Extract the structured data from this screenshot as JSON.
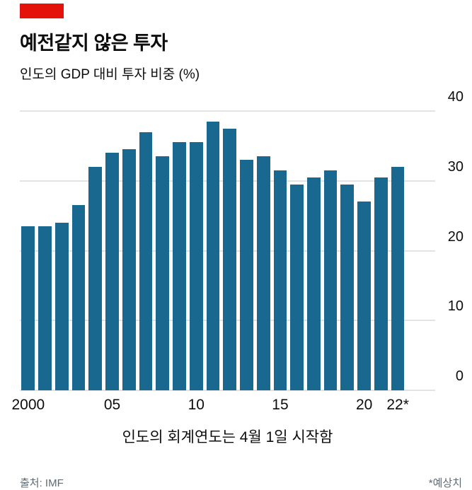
{
  "header": {
    "title": "예전같지 않은 투자",
    "subtitle": "인도의 GDP 대비 투자 비중 (%)",
    "accent_color": "#e3120b"
  },
  "chart_data": {
    "type": "bar",
    "title": "예전같지 않은 투자",
    "subtitle": "인도의 GDP 대비 투자 비중 (%)",
    "categories": [
      2000,
      2001,
      2002,
      2003,
      2004,
      2005,
      2006,
      2007,
      2008,
      2009,
      2010,
      2011,
      2012,
      2013,
      2014,
      2015,
      2016,
      2017,
      2018,
      2019,
      2020,
      2021,
      2022
    ],
    "values": [
      23.5,
      23.5,
      24,
      26.5,
      32,
      34,
      34.5,
      37,
      33.5,
      35.5,
      35.5,
      38.5,
      37.5,
      33,
      33.5,
      31.5,
      29.5,
      30.5,
      31.5,
      29.5,
      27,
      30.5,
      32
    ],
    "bar_color": "#186890",
    "ylim": [
      0,
      40
    ],
    "yticks": [
      0,
      10,
      20,
      30,
      40
    ],
    "ytick_side": "right",
    "grid": true,
    "xtick_labels": [
      {
        "index": 0,
        "label": "2000"
      },
      {
        "index": 5,
        "label": "05"
      },
      {
        "index": 10,
        "label": "10"
      },
      {
        "index": 15,
        "label": "15"
      },
      {
        "index": 20,
        "label": "20"
      },
      {
        "index": 22,
        "label": "22*"
      }
    ],
    "caption": "인도의 회계연도는 4월 1일 시작함"
  },
  "footer": {
    "source": "출처: IMF",
    "note": "*예상치"
  }
}
